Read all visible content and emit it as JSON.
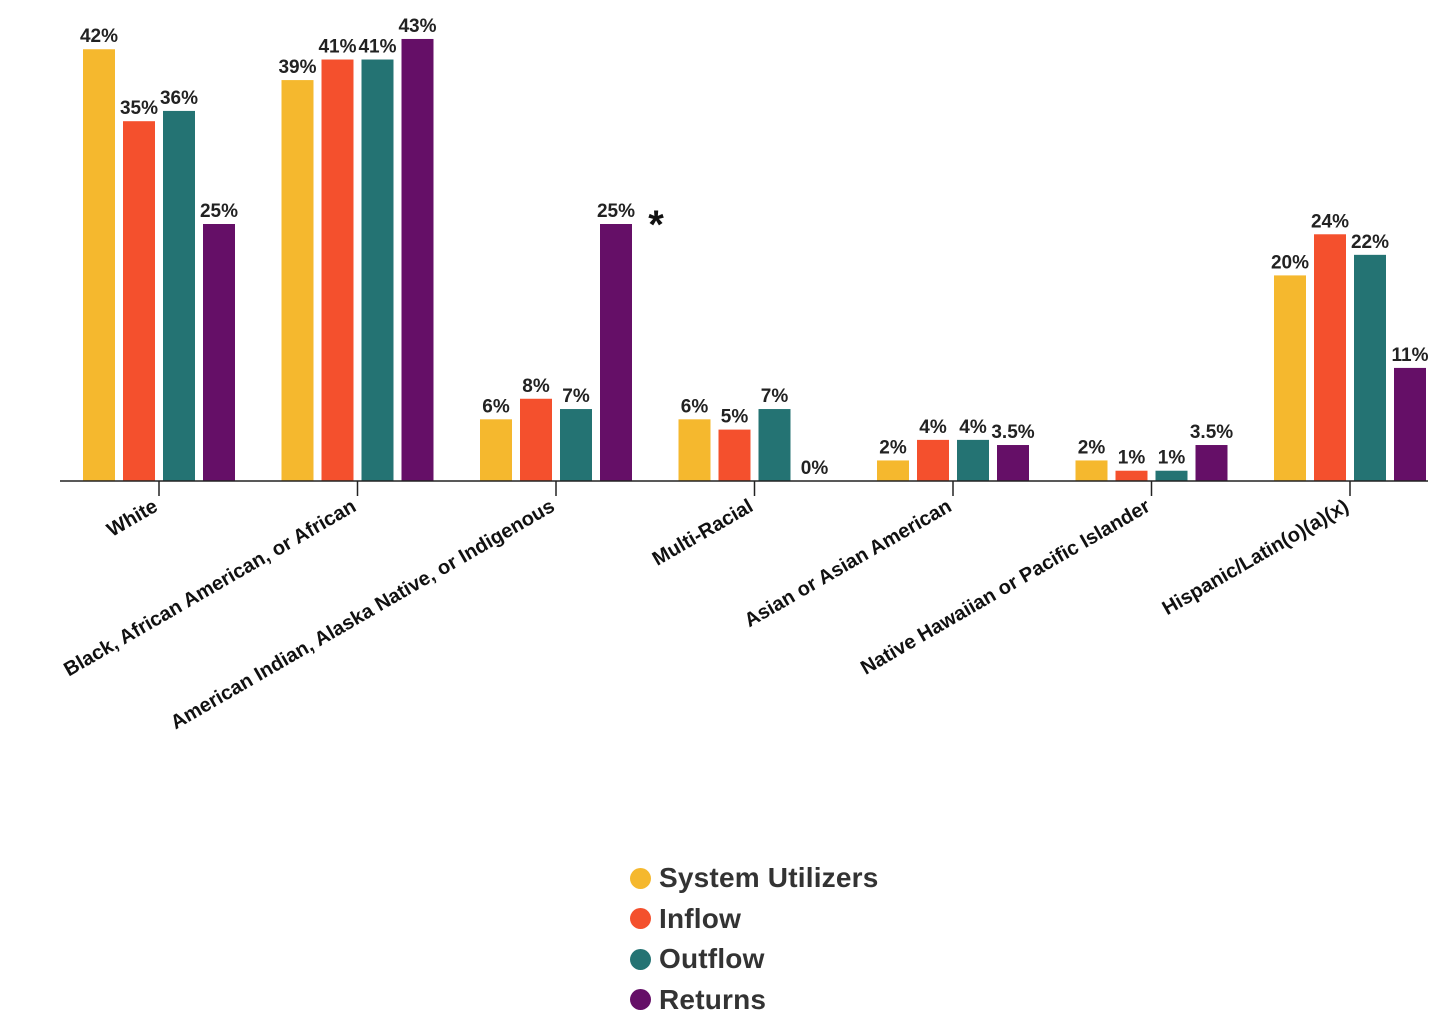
{
  "chart_data": {
    "type": "bar",
    "title": "",
    "xlabel": "",
    "ylabel": "",
    "ylim": [
      0,
      43
    ],
    "grid": false,
    "legend_position": "bottom-center",
    "categories": [
      "White",
      "Black, African American, or African",
      "American Indian, Alaska Native, or Indigenous",
      "Multi-Racial",
      "Asian or Asian American",
      "Native Hawaiian or Pacific Islander",
      "Hispanic/Latin(o)(a)(x)"
    ],
    "series": [
      {
        "name": "System Utilizers",
        "color": "#F5B82E",
        "values": [
          42,
          39,
          6,
          6,
          2,
          2,
          20
        ],
        "labels": [
          "42%",
          "39%",
          "6%",
          "6%",
          "2%",
          "2%",
          "20%"
        ]
      },
      {
        "name": "Inflow",
        "color": "#F4502D",
        "values": [
          35,
          41,
          8,
          5,
          4,
          1,
          24
        ],
        "labels": [
          "35%",
          "41%",
          "8%",
          "5%",
          "4%",
          "1%",
          "24%"
        ]
      },
      {
        "name": "Outflow",
        "color": "#247373",
        "values": [
          36,
          41,
          7,
          7,
          4,
          1,
          22
        ],
        "labels": [
          "36%",
          "41%",
          "7%",
          "7%",
          "4%",
          "1%",
          "22%"
        ]
      },
      {
        "name": "Returns",
        "color": "#650F67",
        "values": [
          25,
          43,
          25,
          0,
          3.5,
          3.5,
          11
        ],
        "labels": [
          "25%",
          "43%",
          "25%",
          "0%",
          "3.5%",
          "3.5%",
          "11%"
        ]
      }
    ],
    "annotations": [
      {
        "text": "*",
        "category": "American Indian, Alaska Native, or Indigenous",
        "series": "Returns"
      }
    ]
  }
}
